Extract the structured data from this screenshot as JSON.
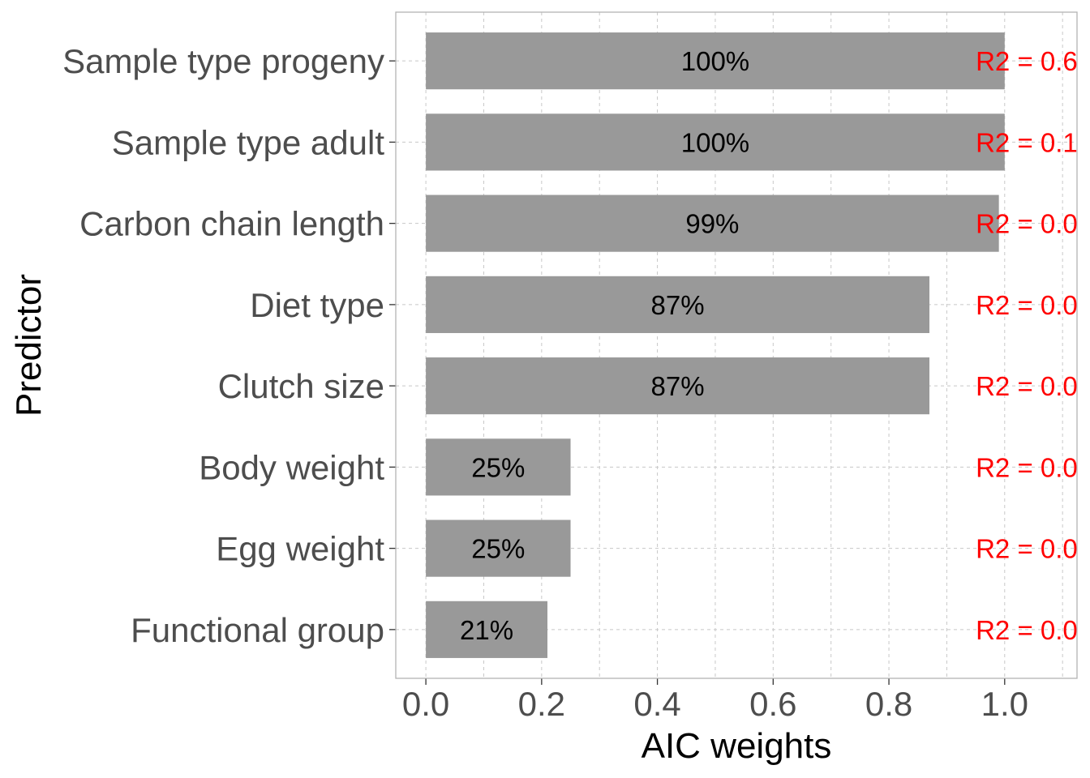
{
  "chart_data": {
    "type": "bar",
    "orientation": "horizontal",
    "categories": [
      "Sample type progeny",
      "Sample type adult",
      "Carbon chain length",
      "Diet type",
      "Clutch size",
      "Body weight",
      "Egg weight",
      "Functional group"
    ],
    "values": [
      1.0,
      1.0,
      0.99,
      0.87,
      0.87,
      0.25,
      0.25,
      0.21
    ],
    "bar_labels": [
      "100%",
      "100%",
      "99%",
      "87%",
      "87%",
      "25%",
      "25%",
      "21%"
    ],
    "annotations": [
      "R2 = 0.6",
      "R2 = 0.1",
      "R2 = 0.0",
      "R2 = 0.0",
      "R2 = 0.0",
      "R2 = 0.0",
      "R2 = 0.0",
      "R2 = 0.0"
    ],
    "xlabel": "AIC weights",
    "ylabel": "Predictor",
    "xlim": [
      -0.052,
      1.125
    ],
    "xticks": [
      0.0,
      0.2,
      0.4,
      0.6,
      0.8,
      1.0
    ],
    "xtick_labels": [
      "0.0",
      "0.2",
      "0.4",
      "0.6",
      "0.8",
      "1.0"
    ],
    "annotation_x": 0.95,
    "grid": true,
    "legend": "none",
    "colors": {
      "bar": "#999999",
      "annotation": "#ff0000",
      "grid": "#c8c8c8",
      "panel_border": "#b3b3b3"
    }
  }
}
